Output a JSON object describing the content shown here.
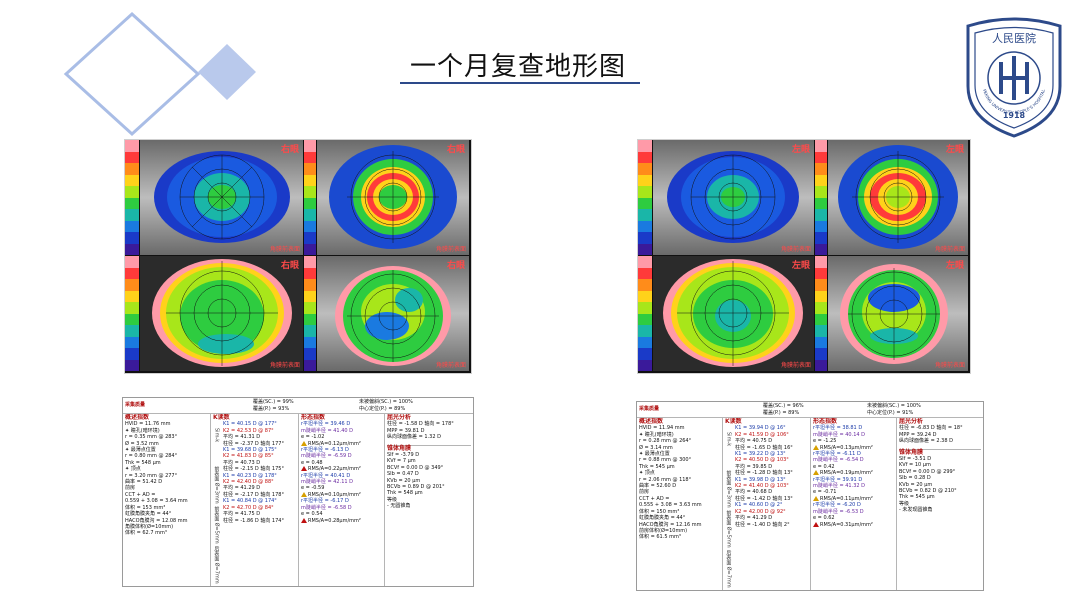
{
  "page": {
    "title": "一个月复查地形图"
  },
  "logo": {
    "top_text": "人民医院",
    "ring_text": "PEKING UNIVERSITY PEOPLE'S HOSPITAL",
    "year": "1918"
  },
  "colors": {
    "title_rule": "#2d4a8a",
    "diamond_outline": "#a9bde6",
    "diamond_fill": "#b9c9ec",
    "logo_blue": "#2d4a8a",
    "eye_label": "#ff4a4a"
  },
  "left_panel": {
    "eye_label": "右眼",
    "quad_footer": "角膜前表面",
    "table": {
      "header_title": "采集质量",
      "header_mid": [
        "覆盖(SC.) = 99%",
        "覆盖(P.) = 93%"
      ],
      "header_right": [
        "未被偏斜(SC.) = 100%",
        "中心定位(P.) = 89%"
      ],
      "col1_title": "概述指数",
      "col1": [
        "HVID = 11.76 mm",
        "✦ 瞳孔(暗环境)",
        "r = 0.35 mm @ 283°",
        "Ø = 3.52 mm",
        "✦ 最薄点位置",
        "r = 0.80 mm @ 284°",
        "Thk = 548 µm",
        "✦ 顶点",
        "r = 3.20 mm @ 277°",
        "曲率 = 51.42 D",
        "前房",
        "CCT + AD =",
        "0.559 + 3.08 = 3.64 mm",
        "体积 = 153 mm³",
        "虹膜角膜夹角 = 44°",
        "HACO角膜沟 = 12.08 mm",
        "角膜体积(Ø=10mm)",
        "体积 = 62.7 mm³"
      ],
      "col2_title": "K读数",
      "col2_vlabels": [
        "Sim-k",
        "前表面 Ø=3mm",
        "前表面 Ø=5mm",
        "后表面 Ø=7mm"
      ],
      "col2": [
        "K1 = 40.15 D @ 177°",
        "K2 = 42.53 D @ 87°",
        "平均 = 41.31 D",
        "柱径 = -2.37 D 轴向 177°",
        "K1 = 39.68 D @ 175°",
        "K2 = 41.83 D @ 85°",
        "平均 = 40.73 D",
        "柱径 = -2.15 D 轴向 175°",
        "K1 = 40.23 D @ 178°",
        "K2 = 42.40 D @ 88°",
        "平均 = 41.29 D",
        "柱径 = -2.17 D 轴向 178°",
        "K1 = 40.84 D @ 174°",
        "K2 = 42.70 D @ 84°",
        "平均 = 41.75 D",
        "柱径 = -1.86 D 轴向 174°"
      ],
      "col3_title": "形态指数",
      "col3": [
        "r平坦半径 = 39.46 D",
        "m陡峭半径 = 41.40 D",
        "e = -1.02",
        "RMS/A=0.12µm/mm²",
        "r平坦半径 = -6.13 D",
        "m陡峭半径 = -6.59 D",
        "e = 0.48",
        "RMS/A=0.22µm/mm²",
        "r平坦半径 = 40.41 D",
        "m陡峭半径 = 42.11 D",
        "e = -0.59",
        "RMS/A=0.10µm/mm²",
        "r平坦半径 = -6.17 D",
        "m陡峭半径 = -6.58 D",
        "e = 0.54",
        "RMS/A=0.28µm/mm²"
      ],
      "col4_title": "屈光分析",
      "col4_top": [
        "柱径 = -1.58 D 轴向 = 178°",
        "MPP = 39.81 D",
        "纵向球面像差 = 1.32 D"
      ],
      "col4_sub": "锥体角膜",
      "col4_bottom": [
        "SIf = -3.79 D",
        "KVf = 7 µm",
        "BCVf = 0.00 D @ 349°",
        "SIb = 0.47 D",
        "KVb = 20 µm",
        "BCVb = 0.89 D @ 201°",
        "Thk = 548 µm",
        "等级",
        "- 无圆锥角"
      ]
    }
  },
  "right_panel": {
    "eye_label": "左眼",
    "quad_footer": "角膜前表面",
    "table": {
      "header_title": "采集质量",
      "header_mid": [
        "覆盖(SC.) = 96%",
        "覆盖(P.) = 89%"
      ],
      "header_right": [
        "未被偏斜(SC.) = 100%",
        "中心定位(P.) = 91%"
      ],
      "col1_title": "概述指数",
      "col1": [
        "HVID = 11.94 mm",
        "✦ 瞳孔(暗环境)",
        "r = 0.28 mm @ 264°",
        "Ø = 3.14 mm",
        "✦ 最薄点位置",
        "r = 0.88 mm @ 300°",
        "Thk = 545 µm",
        "✦ 顶点",
        "r = 2.06 mm @ 118°",
        "曲率 = 52.60 D",
        "前房",
        "CCT + AD =",
        "0.555 + 3.08 = 3.63 mm",
        "体积 = 150 mm³",
        "虹膜角膜夹角 = 44°",
        "HACO角膜沟 = 12.16 mm",
        "前房体积(Ø=10mm)",
        "体积 = 61.5 mm³"
      ],
      "col2_title": "K读数",
      "col2_vlabels": [
        "Sim-k",
        "前表面 Ø=3mm",
        "前表面 Ø=5mm",
        "后表面 Ø=7mm"
      ],
      "col2": [
        "K1 = 39.94 D @ 16°",
        "K2 = 41.59 D @ 106°",
        "平均 = 40.75 D",
        "柱径 = -1.65 D 轴向 16°",
        "K1 = 39.22 D @ 13°",
        "K2 = 40.50 D @ 103°",
        "平均 = 39.85 D",
        "柱径 = -1.28 D 轴向 13°",
        "K1 = 39.98 D @ 13°",
        "K2 = 41.40 D @ 103°",
        "平均 = 40.68 D",
        "柱径 = -1.42 D 轴向 13°",
        "K1 = 40.60 D @ 2°",
        "K2 = 42.00 D @ 92°",
        "平均 = 41.29 D",
        "柱径 = -1.40 D 轴向 2°"
      ],
      "col3_title": "形态指数",
      "col3": [
        "r平坦半径 = 38.81 D",
        "m陡峭半径 = 40.14 D",
        "e = -1.25",
        "RMS/A=0.13µm/mm²",
        "r平坦半径 = -6.11 D",
        "m陡峭半径 = -6.54 D",
        "e = 0.42",
        "RMS/A=0.19µm/mm²",
        "r平坦半径 = 39.91 D",
        "m陡峭半径 = 41.32 D",
        "e = -0.71",
        "RMS/A=0.11µm/mm²",
        "r平坦半径 = -6.20 D",
        "m陡峭半径 = -6.53 D",
        "e = 0.62",
        "RMS/A=0.31µm/mm²"
      ],
      "col4_title": "屈光分析",
      "col4_top": [
        "柱径 = -6.83 D 轴向 = 18°",
        "MPP = 39.24 D",
        "纵向球面像差 = 2.38 D"
      ],
      "col4_sub": "锥体角膜",
      "col4_bottom": [
        "SIf = -3.51 D",
        "KVf = 10 µm",
        "BCVf = 0.00 D @ 299°",
        "SIb = 0.28 D",
        "KVb = 20 µm",
        "BCVb = 0.82 D @ 210°",
        "Thk = 545 µm",
        "等级",
        "- 未发现圆锥角"
      ]
    }
  }
}
